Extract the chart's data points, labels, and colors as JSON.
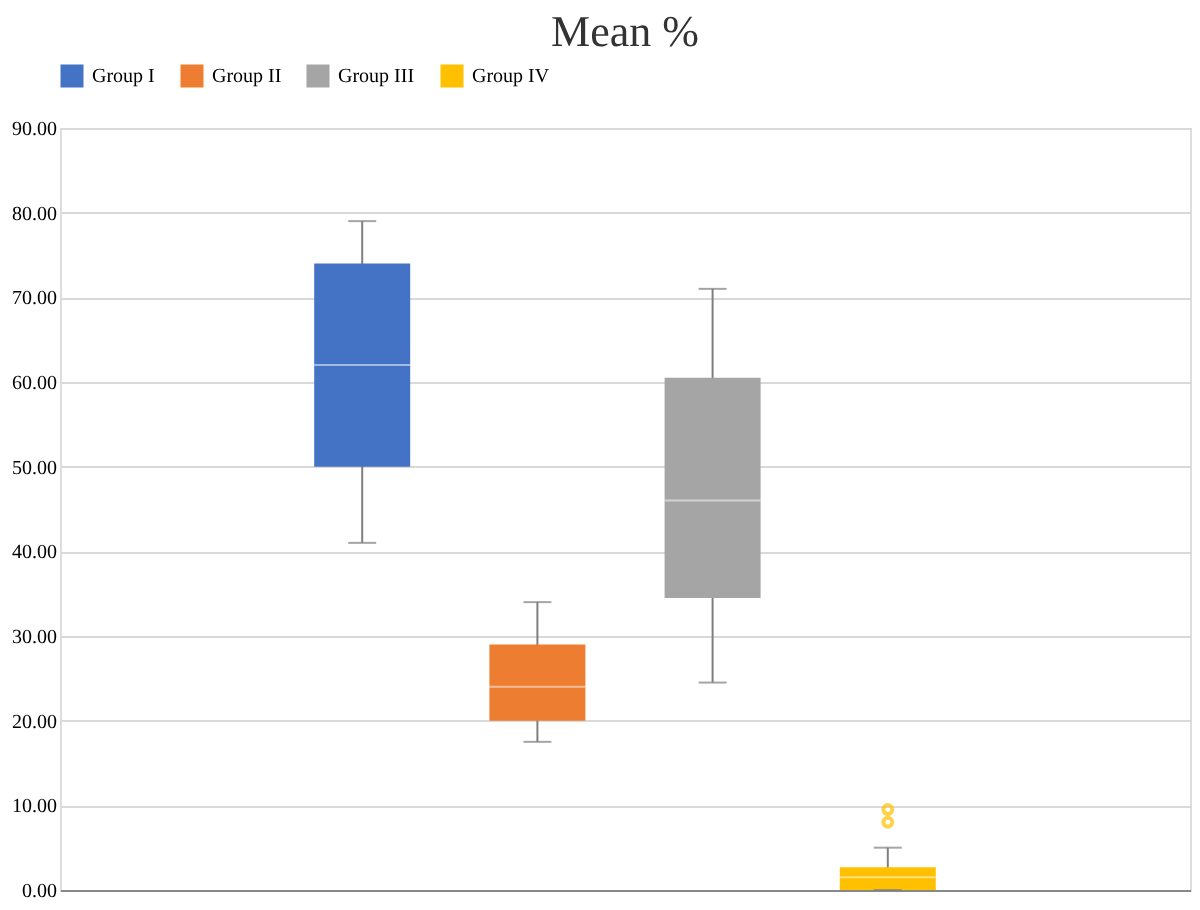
{
  "chart_data": {
    "type": "box",
    "title": "Mean %",
    "categories": [
      null
    ],
    "series": [
      {
        "name": "Group I",
        "color": "#4472c4",
        "boxes": [
          {
            "low": 41,
            "q1": 50,
            "median": 62,
            "q3": 74,
            "high": 79
          }
        ]
      },
      {
        "name": "Group II",
        "color": "#ed7d31",
        "boxes": [
          {
            "low": 17.5,
            "q1": 20,
            "median": 24,
            "q3": 29,
            "high": 34
          }
        ]
      },
      {
        "name": "Group III",
        "color": "#a5a5a5",
        "boxes": [
          {
            "low": 24.5,
            "q1": 34.5,
            "median": 46,
            "q3": 60.5,
            "high": 71
          }
        ]
      },
      {
        "name": "Group IV",
        "color": "#ffc000",
        "boxes": [
          {
            "low": 0,
            "q1": 0,
            "median": 1.5,
            "q3": 2.7,
            "high": 5,
            "outliers": [
              8,
              9.5
            ]
          }
        ]
      }
    ],
    "ylim": [
      0,
      90
    ],
    "yticks": [
      {
        "value": 0,
        "label": "0.00"
      },
      {
        "value": 10,
        "label": "10.00"
      },
      {
        "value": 20,
        "label": "20.00"
      },
      {
        "value": 30,
        "label": "30.00"
      },
      {
        "value": 40,
        "label": "40.00"
      },
      {
        "value": 50,
        "label": "50.00"
      },
      {
        "value": 60,
        "label": "60.00"
      },
      {
        "value": 70,
        "label": "70.00"
      },
      {
        "value": 80,
        "label": "80.00"
      },
      {
        "value": 90,
        "label": "90.00"
      }
    ],
    "grid": "y",
    "legend": "top"
  }
}
